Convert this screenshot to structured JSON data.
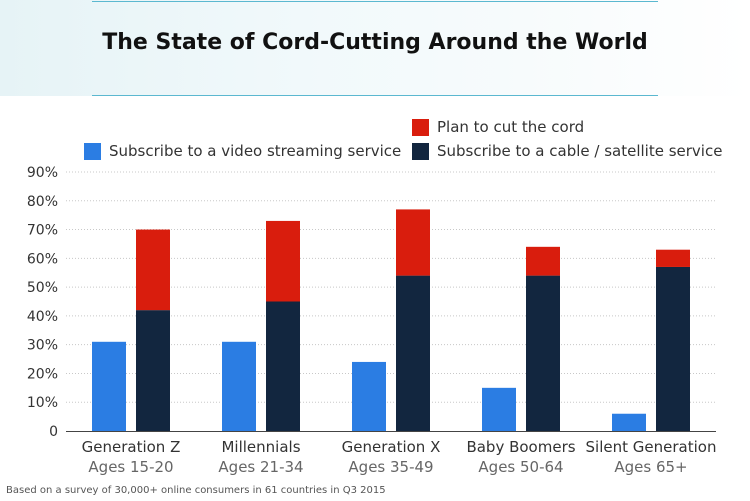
{
  "header": {
    "title": "The State of Cord-Cutting Around the World"
  },
  "chart_data": {
    "type": "bar",
    "title": "The State of Cord-Cutting Around the World",
    "categories": [
      "Generation Z",
      "Millennials",
      "Generation X",
      "Baby Boomers",
      "Silent Generation"
    ],
    "category_sublabels": [
      "Ages 15-20",
      "Ages 21-34",
      "Ages 35-49",
      "Ages 50-64",
      "Ages 65+"
    ],
    "y_ticks": [
      "0",
      "10%",
      "20%",
      "30%",
      "40%",
      "50%",
      "60%",
      "70%",
      "80%",
      "90%"
    ],
    "ylim": [
      0,
      90
    ],
    "grid": true,
    "legend_position": "top-right",
    "series": [
      {
        "name": "Subscribe to a video streaming service",
        "color": "#2b7de3",
        "values": [
          31,
          31,
          24,
          15,
          6
        ],
        "stack": "a"
      },
      {
        "name": "Subscribe to a cable / satellite service",
        "color": "#12263f",
        "values": [
          42,
          45,
          54,
          54,
          57
        ],
        "stack": "b"
      },
      {
        "name": "Plan to cut the cord",
        "color": "#d91d0d",
        "values": [
          28,
          28,
          23,
          10,
          6
        ],
        "stack": "b"
      }
    ]
  },
  "legend": {
    "streaming": "Subscribe to a video streaming service",
    "plan_cut": "Plan to cut the cord",
    "cable": "Subscribe to a cable / satellite service"
  },
  "footer": {
    "note": "Based on a survey of 30,000+ online consumers in 61 countries in Q3 2015"
  }
}
